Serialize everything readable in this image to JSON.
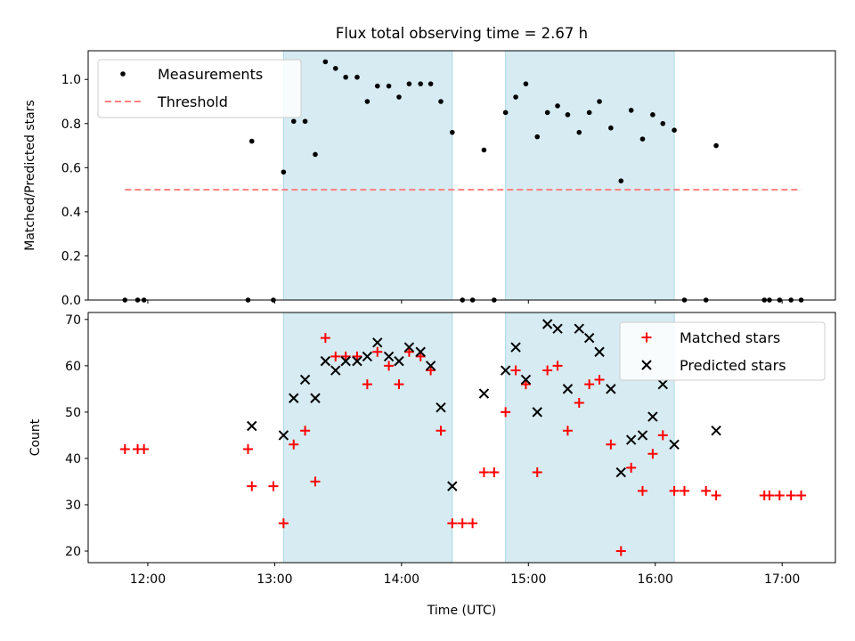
{
  "title": "Flux total observing time = 2.67 h",
  "x_tick_labels": [
    "12:00",
    "13:00",
    "14:00",
    "15:00",
    "16:00",
    "17:00"
  ],
  "x_tick_hours": [
    12,
    13,
    14,
    15,
    16,
    17
  ],
  "xlabel": "Time (UTC)",
  "xlim_hours": [
    11.53,
    17.42
  ],
  "shaded_intervals_hours": [
    [
      13.07,
      14.4
    ],
    [
      14.82,
      16.15
    ]
  ],
  "colors": {
    "shade": "#add8e6",
    "measurement": "#000000",
    "threshold": "#ff7f7f",
    "matched": "#ff0000",
    "predicted": "#000000"
  },
  "chart_data": [
    {
      "type": "scatter",
      "ylabel": "Matched/Predicted stars",
      "ylim": [
        0,
        1.13
      ],
      "yticks": [
        0.0,
        0.2,
        0.4,
        0.6,
        0.8,
        1.0
      ],
      "legend_placement": "upper-left",
      "series": [
        {
          "name": "Measurements",
          "x": [
            11.82,
            11.92,
            11.97,
            12.79,
            12.82,
            12.99,
            13.07,
            13.15,
            13.24,
            13.32,
            13.4,
            13.48,
            13.56,
            13.65,
            13.73,
            13.81,
            13.9,
            13.98,
            14.06,
            14.15,
            14.23,
            14.31,
            14.4,
            14.48,
            14.56,
            14.65,
            14.73,
            14.82,
            14.9,
            14.98,
            15.07,
            15.15,
            15.23,
            15.31,
            15.4,
            15.48,
            15.56,
            15.65,
            15.73,
            15.81,
            15.9,
            15.98,
            16.06,
            16.15,
            16.23,
            16.4,
            16.48,
            16.86,
            16.9,
            16.98,
            17.07,
            17.15
          ],
          "y": [
            0,
            0,
            0,
            0,
            0.72,
            0,
            0.58,
            0.81,
            0.81,
            0.66,
            1.08,
            1.05,
            1.01,
            1.01,
            0.9,
            0.97,
            0.97,
            0.92,
            0.98,
            0.98,
            0.98,
            0.9,
            0.76,
            0,
            0,
            0.68,
            0,
            0.85,
            0.92,
            0.98,
            0.74,
            0.85,
            0.88,
            0.84,
            0.76,
            0.85,
            0.9,
            0.78,
            0.54,
            0.86,
            0.73,
            0.84,
            0.8,
            0.77,
            0,
            0,
            0.7,
            0,
            0,
            0,
            0,
            0
          ]
        },
        {
          "name": "Threshold",
          "x": [
            11.82,
            17.15
          ],
          "y": [
            0.5,
            0.5
          ]
        }
      ]
    },
    {
      "type": "scatter",
      "ylabel": "Count",
      "ylim": [
        17.5,
        71.5
      ],
      "yticks": [
        20,
        30,
        40,
        50,
        60,
        70
      ],
      "legend_placement": "upper-right",
      "series": [
        {
          "name": "Matched stars",
          "x": [
            11.82,
            11.92,
            11.97,
            12.79,
            12.82,
            12.99,
            13.07,
            13.15,
            13.24,
            13.32,
            13.4,
            13.48,
            13.56,
            13.65,
            13.73,
            13.81,
            13.9,
            13.98,
            14.06,
            14.15,
            14.23,
            14.31,
            14.4,
            14.48,
            14.56,
            14.65,
            14.73,
            14.82,
            14.9,
            14.98,
            15.07,
            15.15,
            15.23,
            15.31,
            15.4,
            15.48,
            15.56,
            15.65,
            15.73,
            15.81,
            15.9,
            15.98,
            16.06,
            16.15,
            16.23,
            16.4,
            16.48,
            16.86,
            16.9,
            16.98,
            17.07,
            17.15
          ],
          "y": [
            42,
            42,
            42,
            42,
            34,
            34,
            26,
            43,
            46,
            35,
            66,
            62,
            62,
            62,
            56,
            63,
            60,
            56,
            63,
            62,
            59,
            46,
            26,
            26,
            26,
            37,
            37,
            50,
            59,
            56,
            37,
            59,
            60,
            46,
            52,
            56,
            57,
            43,
            20,
            38,
            33,
            41,
            45,
            33,
            33,
            33,
            32,
            32,
            32,
            32,
            32,
            32
          ]
        },
        {
          "name": "Predicted stars",
          "x": [
            12.82,
            13.07,
            13.15,
            13.24,
            13.32,
            13.4,
            13.48,
            13.56,
            13.65,
            13.73,
            13.81,
            13.9,
            13.98,
            14.06,
            14.15,
            14.23,
            14.31,
            14.4,
            14.65,
            14.82,
            14.9,
            14.98,
            15.07,
            15.15,
            15.23,
            15.31,
            15.4,
            15.48,
            15.56,
            15.65,
            15.73,
            15.81,
            15.9,
            15.98,
            16.06,
            16.15,
            16.48
          ],
          "y": [
            47,
            45,
            53,
            57,
            53,
            61,
            59,
            61,
            61,
            62,
            65,
            62,
            61,
            64,
            63,
            60,
            51,
            34,
            54,
            59,
            64,
            57,
            50,
            69,
            68,
            55,
            68,
            66,
            63,
            55,
            37,
            44,
            45,
            49,
            56,
            43,
            46
          ]
        }
      ]
    }
  ]
}
